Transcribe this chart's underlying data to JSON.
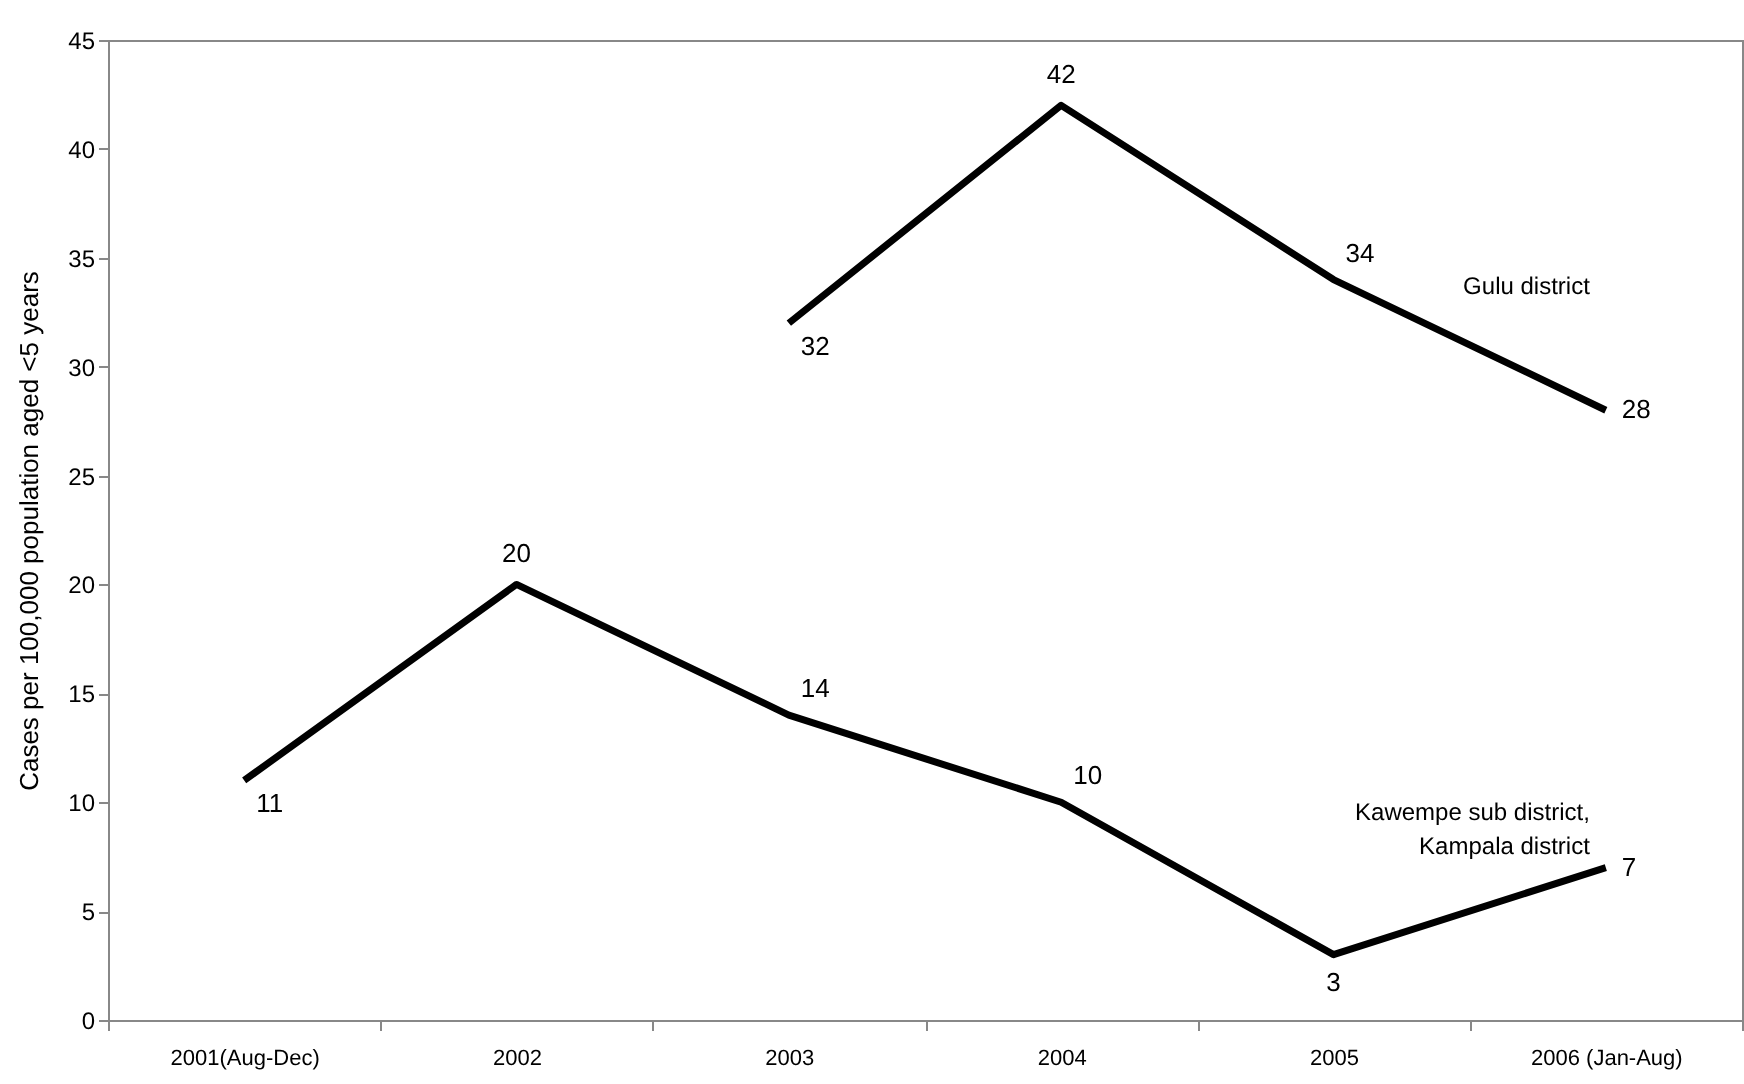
{
  "chart_data": {
    "type": "line",
    "ylabel": "Cases per 100,000 population aged <5 years",
    "categories": [
      "2001(Aug-Dec)",
      "2002",
      "2003",
      "2004",
      "2005",
      "2006 (Jan-Aug)"
    ],
    "series": [
      {
        "name": "Gulu district",
        "color": "#000000",
        "values": [
          null,
          null,
          32,
          42,
          34,
          28
        ]
      },
      {
        "name": "Kawempe sub district, Kampala district",
        "color": "#000000",
        "values": [
          11,
          20,
          14,
          10,
          3,
          7
        ]
      }
    ],
    "ylim": [
      0,
      45
    ],
    "yticks": [
      0,
      5,
      10,
      15,
      20,
      25,
      30,
      35,
      40,
      45
    ],
    "grid": false,
    "marker": "none",
    "line_style": "solid",
    "data_labels": true
  }
}
